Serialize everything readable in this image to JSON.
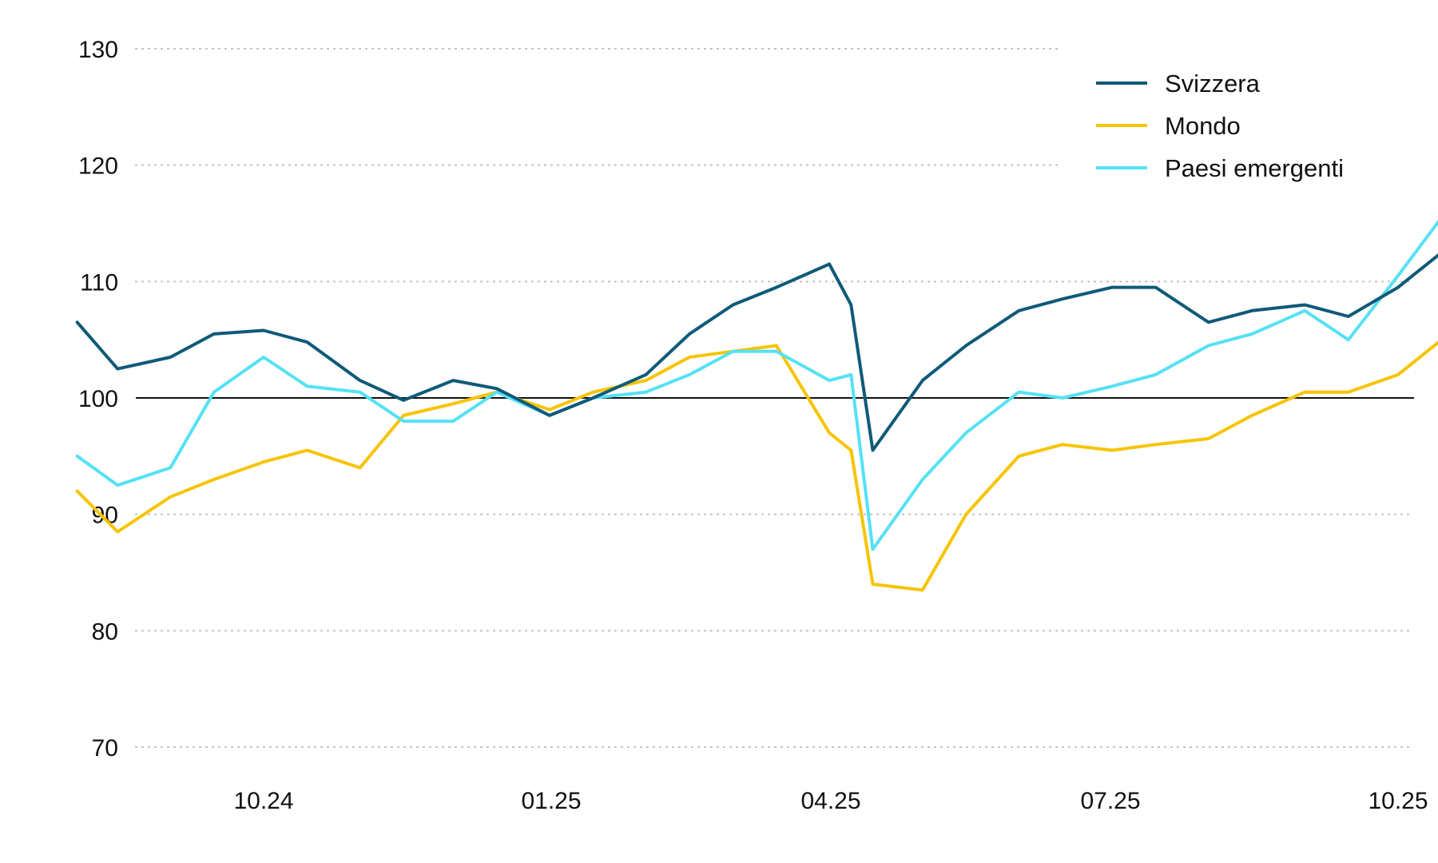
{
  "chart_data": {
    "type": "line",
    "title": "",
    "xlabel": "",
    "ylabel": "",
    "ylim": [
      70,
      130
    ],
    "yticks": [
      70,
      80,
      90,
      100,
      110,
      120,
      130
    ],
    "xticks": [
      "10.24",
      "01.25",
      "04.25",
      "07.25",
      "10.25"
    ],
    "x_range": [
      "08.24",
      "10.25"
    ],
    "reference_line": 100,
    "grid": "horizontal dotted",
    "legend_position": "top-right",
    "series": [
      {
        "name": "Svizzera",
        "color": "#0e5a78",
        "x": [
          "2024-08-02",
          "2024-08-15",
          "2024-09-01",
          "2024-09-15",
          "2024-10-01",
          "2024-10-15",
          "2024-11-01",
          "2024-11-15",
          "2024-12-01",
          "2024-12-15",
          "2025-01-01",
          "2025-01-15",
          "2025-02-01",
          "2025-02-15",
          "2025-03-01",
          "2025-03-15",
          "2025-04-01",
          "2025-04-08",
          "2025-04-15",
          "2025-05-01",
          "2025-05-15",
          "2025-06-01",
          "2025-06-15",
          "2025-07-01",
          "2025-07-15",
          "2025-08-01",
          "2025-08-15",
          "2025-09-01",
          "2025-09-15",
          "2025-10-01",
          "2025-10-15"
        ],
        "values": [
          106.5,
          102.5,
          103.5,
          105.5,
          105.8,
          104.8,
          101.5,
          99.8,
          101.5,
          100.8,
          98.5,
          100.0,
          102.0,
          105.5,
          108.0,
          109.5,
          111.5,
          108.0,
          95.5,
          101.5,
          104.5,
          107.5,
          108.5,
          109.5,
          109.5,
          106.5,
          107.5,
          108.0,
          107.0,
          109.5,
          112.5
        ]
      },
      {
        "name": "Mondo",
        "color": "#f7c400",
        "x": [
          "2024-08-02",
          "2024-08-15",
          "2024-09-01",
          "2024-09-15",
          "2024-10-01",
          "2024-10-15",
          "2024-11-01",
          "2024-11-15",
          "2024-12-01",
          "2024-12-15",
          "2025-01-01",
          "2025-01-15",
          "2025-02-01",
          "2025-02-15",
          "2025-03-01",
          "2025-03-15",
          "2025-04-01",
          "2025-04-08",
          "2025-04-15",
          "2025-05-01",
          "2025-05-15",
          "2025-06-01",
          "2025-06-15",
          "2025-07-01",
          "2025-07-15",
          "2025-08-01",
          "2025-08-15",
          "2025-09-01",
          "2025-09-15",
          "2025-10-01",
          "2025-10-15"
        ],
        "values": [
          92.0,
          88.5,
          91.5,
          93.0,
          94.5,
          95.5,
          94.0,
          98.5,
          99.5,
          100.5,
          99.0,
          100.5,
          101.5,
          103.5,
          104.0,
          104.5,
          97.0,
          95.5,
          84.0,
          83.5,
          90.0,
          95.0,
          96.0,
          95.5,
          96.0,
          96.5,
          98.5,
          100.5,
          100.5,
          102.0,
          105.0
        ]
      },
      {
        "name": "Paesi emergenti",
        "color": "#55e1f5",
        "x": [
          "2024-08-02",
          "2024-08-15",
          "2024-09-01",
          "2024-09-15",
          "2024-10-01",
          "2024-10-15",
          "2024-11-01",
          "2024-11-15",
          "2024-12-01",
          "2024-12-15",
          "2025-01-01",
          "2025-01-15",
          "2025-02-01",
          "2025-02-15",
          "2025-03-01",
          "2025-03-15",
          "2025-04-01",
          "2025-04-08",
          "2025-04-15",
          "2025-05-01",
          "2025-05-15",
          "2025-06-01",
          "2025-06-15",
          "2025-07-01",
          "2025-07-15",
          "2025-08-01",
          "2025-08-15",
          "2025-09-01",
          "2025-09-15",
          "2025-10-01",
          "2025-10-15"
        ],
        "values": [
          95.0,
          92.5,
          94.0,
          100.5,
          103.5,
          101.0,
          100.5,
          98.0,
          98.0,
          100.5,
          98.5,
          100.0,
          100.5,
          102.0,
          104.0,
          104.0,
          101.5,
          102.0,
          87.0,
          93.0,
          97.0,
          100.5,
          100.0,
          101.0,
          102.0,
          104.5,
          105.5,
          107.5,
          105.0,
          110.5,
          115.5
        ]
      }
    ]
  }
}
